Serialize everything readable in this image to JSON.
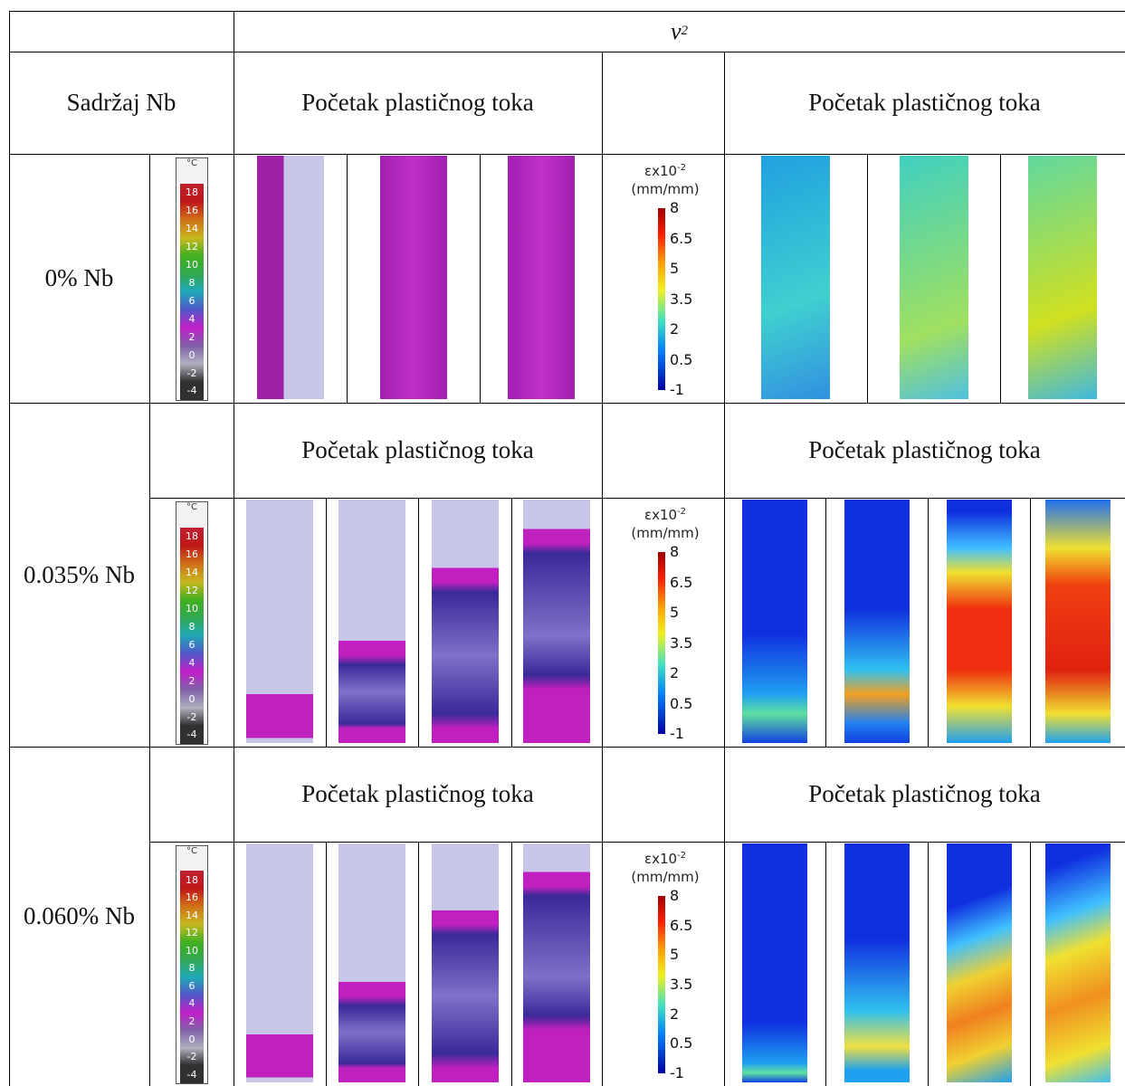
{
  "header": {
    "symbol": "v",
    "subscript": "2"
  },
  "column_header": "Sadržaj Nb",
  "rows": [
    {
      "label": "0% Nb",
      "thermal_title": "Početak plastičnog toka",
      "strain_title": "Početak plastičnog toka"
    },
    {
      "label": "0.035% Nb",
      "thermal_title": "Početak plastičnog toka",
      "strain_title": "Početak plastičnog toka"
    },
    {
      "label": "0.060% Nb",
      "thermal_title": "Početak plastičnog toka",
      "strain_title": "Početak plastičnog toka"
    }
  ],
  "temperature_scale": {
    "unit": "°C",
    "ticks": [
      "18",
      "16",
      "14",
      "12",
      "10",
      "8",
      "6",
      "4",
      "2",
      "0",
      "-2",
      "-4"
    ]
  },
  "strain_scale": {
    "symbol": "εx10",
    "exponent": "-2",
    "unit": "(mm/mm)",
    "ticks": [
      "8",
      "6.5",
      "5",
      "3.5",
      "2",
      "0.5",
      "-1"
    ]
  }
}
